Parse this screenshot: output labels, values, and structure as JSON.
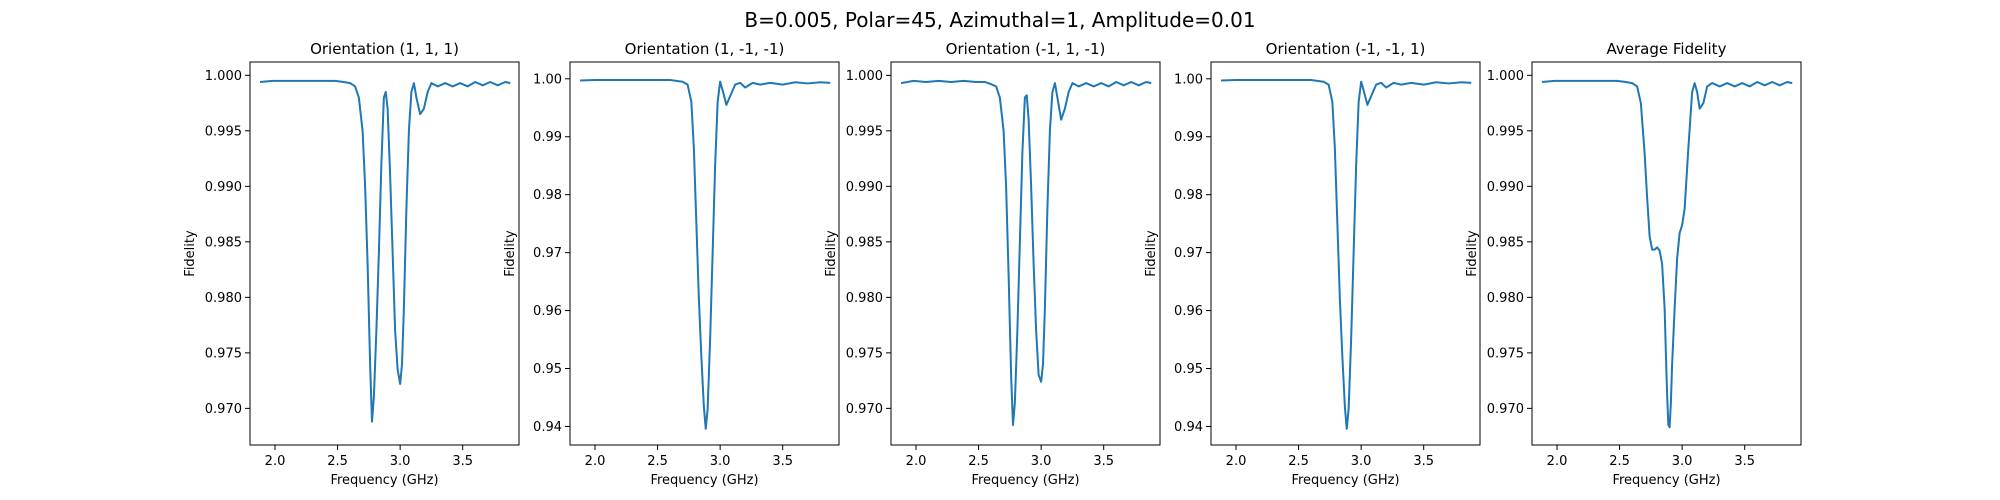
{
  "suptitle": "B=0.005, Polar=45, Azimuthal=1, Amplitude=0.01",
  "colors": {
    "line": "#1f77b4",
    "axes": "#000000",
    "background": "#ffffff"
  },
  "chart_data": [
    {
      "type": "line",
      "title": "Orientation (1, 1, 1)",
      "xlabel": "Frequency (GHz)",
      "ylabel": "Fidelity",
      "xlim": [
        1.8,
        3.95
      ],
      "ylim": [
        0.9667,
        1.0012
      ],
      "xticks": [
        "2.0",
        "2.5",
        "3.0",
        "3.5"
      ],
      "xtick_values": [
        2.0,
        2.5,
        3.0,
        3.5
      ],
      "yticks": [
        "0.970",
        "0.975",
        "0.980",
        "0.985",
        "0.990",
        "0.995",
        "1.000"
      ],
      "ytick_values": [
        0.97,
        0.975,
        0.98,
        0.985,
        0.99,
        0.995,
        1.0
      ],
      "grid": false,
      "series": [
        {
          "x": [
            1.88,
            1.98,
            2.08,
            2.18,
            2.28,
            2.38,
            2.48,
            2.55,
            2.6,
            2.64,
            2.67,
            2.7,
            2.72,
            2.74,
            2.76,
            2.775,
            2.79,
            2.81,
            2.83,
            2.85,
            2.87,
            2.885,
            2.9,
            2.92,
            2.94,
            2.96,
            2.98,
            3.0,
            3.015,
            3.03,
            3.05,
            3.07,
            3.09,
            3.11,
            3.13,
            3.16,
            3.19,
            3.22,
            3.25,
            3.3,
            3.36,
            3.42,
            3.48,
            3.54,
            3.6,
            3.66,
            3.72,
            3.78,
            3.84,
            3.88
          ],
          "y": [
            0.9994,
            0.9995,
            0.9995,
            0.9995,
            0.9995,
            0.9995,
            0.9995,
            0.9994,
            0.9993,
            0.999,
            0.998,
            0.995,
            0.99,
            0.983,
            0.974,
            0.9688,
            0.971,
            0.977,
            0.984,
            0.992,
            0.998,
            0.9985,
            0.997,
            0.991,
            0.984,
            0.977,
            0.9735,
            0.9722,
            0.974,
            0.979,
            0.988,
            0.995,
            0.9985,
            0.9993,
            0.998,
            0.9965,
            0.997,
            0.9985,
            0.9993,
            0.999,
            0.9993,
            0.999,
            0.9993,
            0.999,
            0.9994,
            0.9991,
            0.9994,
            0.9991,
            0.9994,
            0.9993
          ]
        }
      ]
    },
    {
      "type": "line",
      "title": "Orientation (1, -1, -1)",
      "xlabel": "Frequency (GHz)",
      "ylabel": "Fidelity",
      "xlim": [
        1.8,
        3.95
      ],
      "ylim": [
        0.9368,
        1.0029
      ],
      "xticks": [
        "2.0",
        "2.5",
        "3.0",
        "3.5"
      ],
      "xtick_values": [
        2.0,
        2.5,
        3.0,
        3.5
      ],
      "yticks": [
        "0.94",
        "0.95",
        "0.96",
        "0.97",
        "0.98",
        "0.99",
        "1.00"
      ],
      "ytick_values": [
        0.94,
        0.95,
        0.96,
        0.97,
        0.98,
        0.99,
        1.0
      ],
      "grid": false,
      "series": [
        {
          "x": [
            1.88,
            2.0,
            2.2,
            2.4,
            2.6,
            2.7,
            2.74,
            2.77,
            2.79,
            2.81,
            2.83,
            2.85,
            2.87,
            2.885,
            2.9,
            2.92,
            2.94,
            2.96,
            2.98,
            3.0,
            3.02,
            3.05,
            3.08,
            3.12,
            3.16,
            3.2,
            3.26,
            3.32,
            3.4,
            3.5,
            3.6,
            3.7,
            3.8,
            3.88
          ],
          "y": [
            0.9997,
            0.9998,
            0.9998,
            0.9998,
            0.9998,
            0.9995,
            0.999,
            0.996,
            0.988,
            0.975,
            0.962,
            0.952,
            0.9434,
            0.9396,
            0.943,
            0.955,
            0.97,
            0.985,
            0.996,
            0.9995,
            0.998,
            0.9955,
            0.997,
            0.999,
            0.9993,
            0.9985,
            0.9993,
            0.999,
            0.9993,
            0.999,
            0.9994,
            0.9992,
            0.9994,
            0.9993
          ]
        }
      ]
    },
    {
      "type": "line",
      "title": "Orientation (-1, 1, -1)",
      "xlabel": "Frequency (GHz)",
      "ylabel": "Fidelity",
      "xlim": [
        1.8,
        3.95
      ],
      "ylim": [
        0.9667,
        1.0012
      ],
      "xticks": [
        "2.0",
        "2.5",
        "3.0",
        "3.5"
      ],
      "xtick_values": [
        2.0,
        2.5,
        3.0,
        3.5
      ],
      "yticks": [
        "0.970",
        "0.975",
        "0.980",
        "0.985",
        "0.990",
        "0.995",
        "1.000"
      ],
      "ytick_values": [
        0.97,
        0.975,
        0.98,
        0.985,
        0.99,
        0.995,
        1.0
      ],
      "grid": false,
      "series": [
        {
          "x": [
            1.88,
            1.98,
            2.08,
            2.18,
            2.28,
            2.38,
            2.48,
            2.55,
            2.6,
            2.64,
            2.67,
            2.7,
            2.72,
            2.74,
            2.76,
            2.775,
            2.79,
            2.81,
            2.83,
            2.85,
            2.87,
            2.885,
            2.9,
            2.92,
            2.94,
            2.96,
            2.98,
            3.0,
            3.015,
            3.03,
            3.05,
            3.07,
            3.09,
            3.11,
            3.13,
            3.16,
            3.19,
            3.22,
            3.25,
            3.3,
            3.36,
            3.42,
            3.48,
            3.54,
            3.6,
            3.66,
            3.72,
            3.78,
            3.84,
            3.88
          ],
          "y": [
            0.9993,
            0.9995,
            0.9994,
            0.9995,
            0.9994,
            0.9995,
            0.9994,
            0.9994,
            0.9992,
            0.999,
            0.998,
            0.995,
            0.99,
            0.982,
            0.973,
            0.9685,
            0.9705,
            0.977,
            0.985,
            0.993,
            0.998,
            0.9982,
            0.996,
            0.99,
            0.983,
            0.977,
            0.973,
            0.9724,
            0.974,
            0.979,
            0.988,
            0.995,
            0.9985,
            0.9993,
            0.998,
            0.996,
            0.997,
            0.9985,
            0.9993,
            0.999,
            0.9993,
            0.999,
            0.9993,
            0.999,
            0.9994,
            0.9991,
            0.9994,
            0.9991,
            0.9994,
            0.9993
          ]
        }
      ]
    },
    {
      "type": "line",
      "title": "Orientation (-1, -1, 1)",
      "xlabel": "Frequency (GHz)",
      "ylabel": "Fidelity",
      "xlim": [
        1.8,
        3.95
      ],
      "ylim": [
        0.9368,
        1.0029
      ],
      "xticks": [
        "2.0",
        "2.5",
        "3.0",
        "3.5"
      ],
      "xtick_values": [
        2.0,
        2.5,
        3.0,
        3.5
      ],
      "yticks": [
        "0.94",
        "0.95",
        "0.96",
        "0.97",
        "0.98",
        "0.99",
        "1.00"
      ],
      "ytick_values": [
        0.94,
        0.95,
        0.96,
        0.97,
        0.98,
        0.99,
        1.0
      ],
      "grid": false,
      "series": [
        {
          "x": [
            1.88,
            2.0,
            2.2,
            2.4,
            2.6,
            2.7,
            2.74,
            2.77,
            2.79,
            2.81,
            2.83,
            2.85,
            2.87,
            2.885,
            2.9,
            2.92,
            2.94,
            2.96,
            2.98,
            3.0,
            3.02,
            3.05,
            3.08,
            3.12,
            3.16,
            3.2,
            3.26,
            3.32,
            3.4,
            3.5,
            3.6,
            3.7,
            3.8,
            3.88
          ],
          "y": [
            0.9997,
            0.9998,
            0.9998,
            0.9998,
            0.9998,
            0.9995,
            0.999,
            0.996,
            0.988,
            0.975,
            0.962,
            0.952,
            0.9434,
            0.9396,
            0.943,
            0.955,
            0.97,
            0.985,
            0.996,
            0.9995,
            0.998,
            0.9955,
            0.997,
            0.999,
            0.9993,
            0.9985,
            0.9993,
            0.999,
            0.9993,
            0.999,
            0.9994,
            0.9992,
            0.9994,
            0.9993
          ]
        }
      ]
    },
    {
      "type": "line",
      "title": "Average Fidelity",
      "xlabel": "Frequency (GHz)",
      "ylabel": "Fidelity",
      "xlim": [
        1.8,
        3.95
      ],
      "ylim": [
        0.9667,
        1.0012
      ],
      "xticks": [
        "2.0",
        "2.5",
        "3.0",
        "3.5"
      ],
      "xtick_values": [
        2.0,
        2.5,
        3.0,
        3.5
      ],
      "yticks": [
        "0.970",
        "0.975",
        "0.980",
        "0.985",
        "0.990",
        "0.995",
        "1.000"
      ],
      "ytick_values": [
        0.97,
        0.975,
        0.98,
        0.985,
        0.99,
        0.995,
        1.0
      ],
      "grid": false,
      "series": [
        {
          "x": [
            1.88,
            1.98,
            2.08,
            2.18,
            2.28,
            2.38,
            2.48,
            2.55,
            2.6,
            2.64,
            2.67,
            2.7,
            2.72,
            2.74,
            2.76,
            2.78,
            2.8,
            2.82,
            2.84,
            2.86,
            2.87,
            2.88,
            2.89,
            2.9,
            2.91,
            2.92,
            2.94,
            2.96,
            2.98,
            3.0,
            3.02,
            3.05,
            3.08,
            3.1,
            3.12,
            3.14,
            3.17,
            3.2,
            3.24,
            3.3,
            3.36,
            3.42,
            3.48,
            3.54,
            3.6,
            3.66,
            3.72,
            3.78,
            3.84,
            3.88
          ],
          "y": [
            0.9994,
            0.9995,
            0.9995,
            0.9995,
            0.9995,
            0.9995,
            0.9995,
            0.9994,
            0.9993,
            0.999,
            0.9975,
            0.993,
            0.989,
            0.9855,
            0.9843,
            0.9843,
            0.9845,
            0.9842,
            0.983,
            0.979,
            0.975,
            0.9712,
            0.9685,
            0.9683,
            0.9705,
            0.974,
            0.979,
            0.9835,
            0.9858,
            0.9865,
            0.988,
            0.9935,
            0.9985,
            0.9993,
            0.9985,
            0.997,
            0.9975,
            0.999,
            0.9993,
            0.999,
            0.9993,
            0.999,
            0.9993,
            0.999,
            0.9994,
            0.9991,
            0.9994,
            0.9991,
            0.9994,
            0.9993
          ]
        }
      ]
    }
  ]
}
